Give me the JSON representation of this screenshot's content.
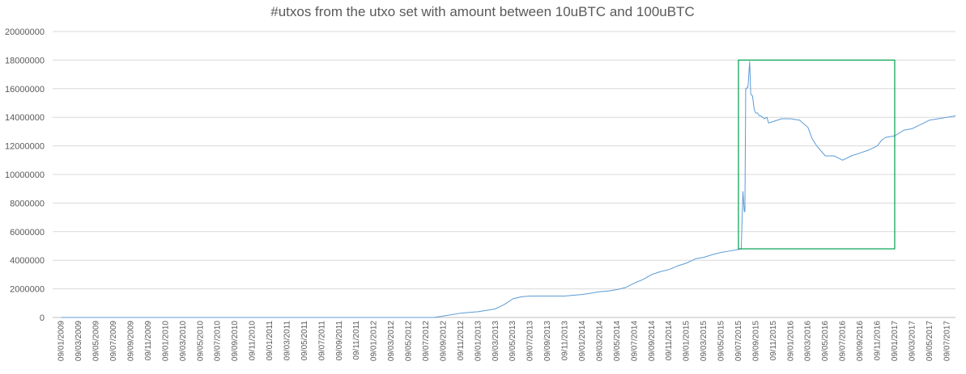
{
  "chart_data": {
    "type": "line",
    "title": "#utxos from the utxo set with amount between 10uBTC and 100uBTC",
    "xlabel": "",
    "ylabel": "",
    "ylim": [
      0,
      20000000
    ],
    "y_ticks": [
      "0",
      "2000000",
      "4000000",
      "6000000",
      "8000000",
      "10000000",
      "12000000",
      "14000000",
      "16000000",
      "18000000",
      "20000000"
    ],
    "x_ticks": [
      "09/01/2009",
      "09/03/2009",
      "09/05/2009",
      "09/07/2009",
      "09/09/2009",
      "09/11/2009",
      "09/01/2010",
      "09/03/2010",
      "09/05/2010",
      "09/07/2010",
      "09/09/2010",
      "09/11/2010",
      "09/01/2011",
      "09/03/2011",
      "09/05/2011",
      "09/07/2011",
      "09/09/2011",
      "09/11/2011",
      "09/01/2012",
      "09/03/2012",
      "09/05/2012",
      "09/07/2012",
      "09/09/2012",
      "09/11/2012",
      "09/01/2013",
      "09/03/2013",
      "09/05/2013",
      "09/07/2013",
      "09/09/2013",
      "09/11/2013",
      "09/01/2014",
      "09/03/2014",
      "09/05/2014",
      "09/07/2014",
      "09/09/2014",
      "09/11/2014",
      "09/01/2015",
      "09/03/2015",
      "09/05/2015",
      "09/07/2015",
      "09/09/2015",
      "09/11/2015",
      "09/01/2016",
      "09/03/2016",
      "09/05/2016",
      "09/07/2016",
      "09/09/2016",
      "09/11/2016",
      "09/01/2017",
      "09/03/2017",
      "09/05/2017",
      "09/07/2017"
    ],
    "grid": true,
    "legend": "none",
    "series": [
      {
        "color": "#5b9bd5",
        "x": [
          "09/01/2009",
          "09/01/2010",
          "09/01/2011",
          "09/01/2012",
          "09/05/2012",
          "09/07/2012",
          "09/08/2012",
          "09/09/2012",
          "09/10/2012",
          "09/11/2012",
          "09/12/2012",
          "09/01/2013",
          "09/02/2013",
          "09/03/2013",
          "09/04/2013",
          "09/05/2013",
          "09/06/2013",
          "09/07/2013",
          "09/08/2013",
          "09/09/2013",
          "09/10/2013",
          "09/11/2013",
          "09/12/2013",
          "09/01/2014",
          "09/02/2014",
          "09/03/2014",
          "09/04/2014",
          "09/05/2014",
          "09/06/2014",
          "09/07/2014",
          "09/08/2014",
          "09/09/2014",
          "09/10/2014",
          "09/11/2014",
          "09/12/2014",
          "09/01/2015",
          "09/02/2015",
          "09/03/2015",
          "09/04/2015",
          "09/05/2015",
          "09/06/2015",
          "09/07/2015",
          "19/07/2015",
          "25/07/2015",
          "30/07/2015",
          "01/08/2015",
          "04/08/2015",
          "07/08/2015",
          "09/08/2015",
          "12/08/2015",
          "18/08/2015",
          "22/08/2015",
          "28/08/2015",
          "03/09/2015",
          "06/09/2015",
          "09/09/2015",
          "15/09/2015",
          "21/09/2015",
          "27/09/2015",
          "03/10/2015",
          "09/10/2015",
          "18/10/2015",
          "24/10/2015",
          "09/11/2015",
          "09/12/2015",
          "09/01/2016",
          "09/02/2016",
          "09/03/2016",
          "24/03/2016",
          "09/04/2016",
          "09/05/2016",
          "09/06/2016",
          "09/07/2016",
          "09/08/2016",
          "09/09/2016",
          "09/10/2016",
          "09/11/2016",
          "24/11/2016",
          "09/12/2016",
          "09/01/2017",
          "09/02/2017",
          "09/03/2017",
          "09/04/2017",
          "09/05/2017",
          "09/06/2017",
          "09/07/2017",
          "09/08/2017"
        ],
        "values": [
          0,
          0,
          0,
          0,
          0,
          0,
          10000,
          100000,
          200000,
          300000,
          350000,
          400000,
          500000,
          600000,
          900000,
          1300000,
          1450000,
          1500000,
          1500000,
          1500000,
          1500000,
          1500000,
          1550000,
          1600000,
          1700000,
          1800000,
          1850000,
          1950000,
          2100000,
          2400000,
          2650000,
          3000000,
          3200000,
          3350000,
          3600000,
          3800000,
          4100000,
          4200000,
          4400000,
          4550000,
          4650000,
          4750000,
          4800000,
          8800000,
          7400000,
          7400000,
          16000000,
          16000000,
          16100000,
          16100000,
          17900000,
          15600000,
          15500000,
          14600000,
          14400000,
          14300000,
          14300000,
          14100000,
          14100000,
          14000000,
          13900000,
          14000000,
          13600000,
          13700000,
          13900000,
          13900000,
          13800000,
          13300000,
          12500000,
          12000000,
          11300000,
          11300000,
          11000000,
          11300000,
          11500000,
          11700000,
          12000000,
          12400000,
          12600000,
          12700000,
          13100000,
          13200000,
          13500000,
          13800000,
          13900000,
          14000000,
          14100000
        ]
      }
    ],
    "annotations": [
      {
        "type": "rectangle",
        "color": "#00a050",
        "x_range": [
          "09/07/2015",
          "09/01/2017"
        ],
        "y_range": [
          4800000,
          18000000
        ]
      }
    ]
  }
}
